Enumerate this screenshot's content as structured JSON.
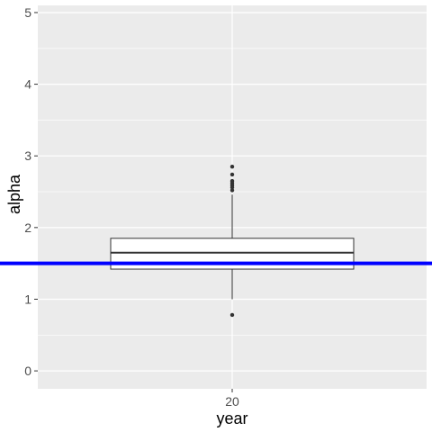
{
  "chart_data": {
    "type": "box",
    "xlabel": "year",
    "ylabel": "alpha",
    "categories": [
      "20"
    ],
    "ylim": [
      -0.25,
      5.1
    ],
    "y_ticks": [
      0,
      1,
      2,
      3,
      4,
      5
    ],
    "grid": true,
    "boxes": [
      {
        "category": "20",
        "lower_whisker": 1.0,
        "q1": 1.42,
        "median": 1.65,
        "q3": 1.85,
        "upper_whisker": 2.46,
        "outliers": [
          0.78,
          2.52,
          2.56,
          2.59,
          2.62,
          2.65,
          2.74,
          2.85
        ]
      }
    ],
    "reference_line": {
      "y": 1.5,
      "color": "#0000ff"
    },
    "colors": {
      "panel": "#ebebeb",
      "grid": "#ffffff",
      "box_fill": "#ffffff",
      "box_outline": "#333333"
    }
  }
}
